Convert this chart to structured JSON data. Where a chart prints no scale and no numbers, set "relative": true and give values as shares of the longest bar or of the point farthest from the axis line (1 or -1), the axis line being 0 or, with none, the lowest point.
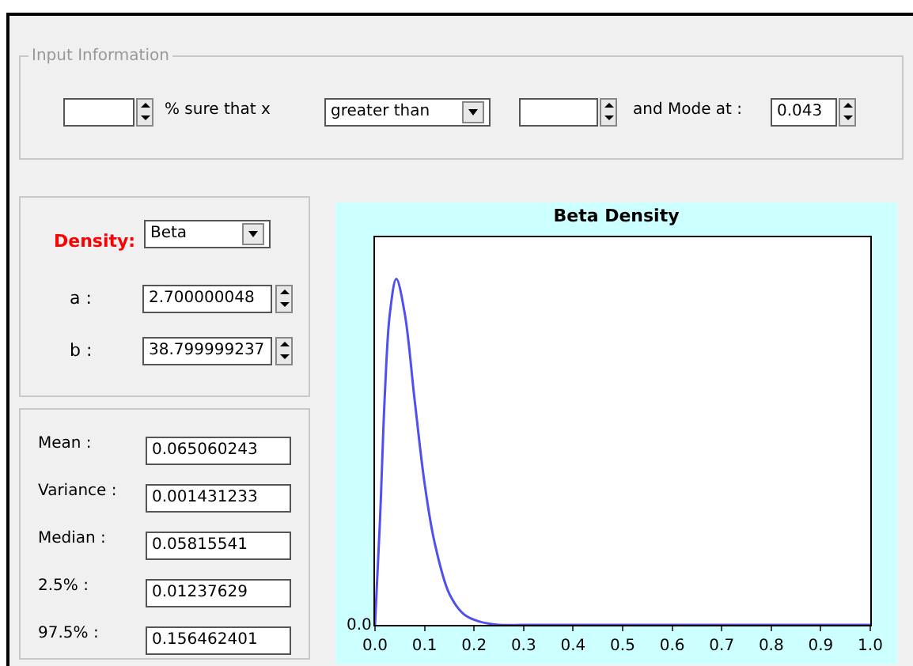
{
  "chart_data": [
    {
      "type": "other",
      "title": "Input Information",
      "annotations": [
        "% sure that x",
        "greater than",
        "and Mode at :",
        "0.043"
      ]
    },
    {
      "type": "other",
      "annotations": [
        "Density:",
        "Beta",
        "a :",
        "2.700000048",
        "b :",
        "38.799999237"
      ]
    },
    {
      "type": "other",
      "annotations": [
        "Mean :",
        "0.065060243",
        "Variance :",
        "0.001431233",
        "Median :",
        "0.05815541",
        "2.5% :",
        "0.01237629",
        "97.5% :",
        "0.156462401"
      ]
    },
    {
      "type": "line",
      "title": "Beta Density",
      "relative": true,
      "color": "#5050f0",
      "annotations": [
        "0.0"
      ],
      "x": [
        0,
        0.01,
        0.02,
        0.03,
        0.043,
        0.06,
        0.08,
        0.1,
        0.12,
        0.15,
        0.18,
        0.21,
        0.25,
        0.3,
        0.4,
        0.5,
        0.6,
        0.7,
        0.8,
        0.9,
        1.0
      ],
      "values": [
        0,
        0.3,
        0.67,
        0.9,
        1,
        0.9,
        0.65,
        0.41,
        0.24,
        0.09,
        0.03,
        0.01,
        0,
        0,
        0,
        0,
        0,
        0,
        0,
        0,
        0
      ],
      "xlim": [
        0,
        1
      ],
      "xticks": [
        {
          "value": 0,
          "label": "0.0"
        },
        {
          "value": 0.1,
          "label": "0.1"
        },
        {
          "value": 0.2,
          "label": "0.2"
        },
        {
          "value": 0.3,
          "label": "0.3"
        },
        {
          "value": 0.4,
          "label": "0.4"
        },
        {
          "value": 0.5,
          "label": "0.5"
        },
        {
          "value": 0.6,
          "label": "0.6"
        },
        {
          "value": 0.7,
          "label": "0.7"
        },
        {
          "value": 0.8,
          "label": "0.8"
        },
        {
          "value": 0.9,
          "label": "0.9"
        },
        {
          "value": 1,
          "label": "1.0"
        }
      ],
      "grid": false,
      "marker": "none",
      "line_style": "solid"
    }
  ]
}
